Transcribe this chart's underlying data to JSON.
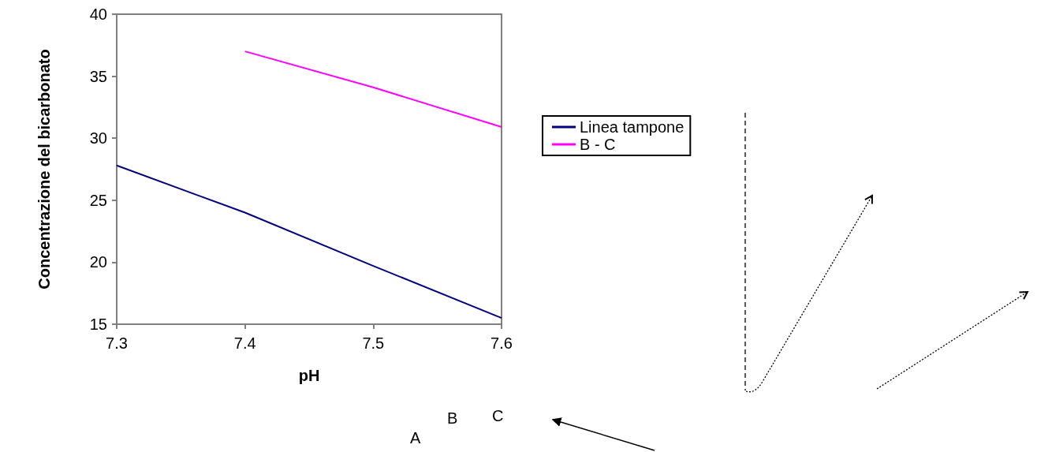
{
  "chart_data": {
    "type": "line",
    "xlabel": "pH",
    "ylabel": "Concentrazione del bicarbonato",
    "x": [
      7.3,
      7.4,
      7.5,
      7.6
    ],
    "series": [
      {
        "name": "Linea tampone",
        "color": "#000080",
        "values": [
          27.8,
          24,
          19.7,
          15.5
        ]
      },
      {
        "name": "B - C",
        "color": "#ff00ff",
        "values": [
          null,
          37,
          34.1,
          30.9
        ]
      }
    ],
    "xlim": [
      7.3,
      7.6
    ],
    "xticks": [
      7.3,
      7.4,
      7.5,
      7.6
    ],
    "ylim": [
      15,
      40
    ],
    "yticks": [
      15,
      20,
      25,
      30,
      35,
      40
    ],
    "grid": false,
    "legend": "right",
    "marker": "none",
    "line_style": "solid",
    "annotations": [
      "A",
      "B",
      "C"
    ]
  }
}
